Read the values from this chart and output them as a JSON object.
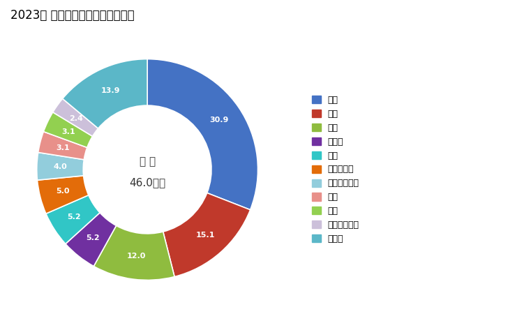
{
  "title": "2023年 輸出相手国のシェア（％）",
  "center_text_line1": "総 額",
  "center_text_line2": "46.0億円",
  "legend_labels": [
    "中国",
    "米国",
    "タイ",
    "インド",
    "香港",
    "マレーシア",
    "インドネシア",
    "豪州",
    "韓国",
    "シンガポール",
    "その他"
  ],
  "values": [
    30.9,
    15.1,
    12.0,
    5.2,
    5.2,
    5.0,
    4.0,
    3.1,
    3.1,
    2.4,
    13.9
  ],
  "colors": [
    "#4472C4",
    "#C0392B",
    "#8FBC3F",
    "#7030A0",
    "#31C6C6",
    "#E36C09",
    "#92CDDC",
    "#E8908A",
    "#92D050",
    "#CCC0DA",
    "#5BB7C8"
  ],
  "wedge_labels": [
    "30.9",
    "15.1",
    "12.0",
    "5.2",
    "5.2",
    "5.0",
    "4.0",
    "3.1",
    "3.1",
    "2.4",
    "13.9"
  ],
  "background_color": "#FFFFFF",
  "title_fontsize": 12,
  "donut_width": 0.42
}
